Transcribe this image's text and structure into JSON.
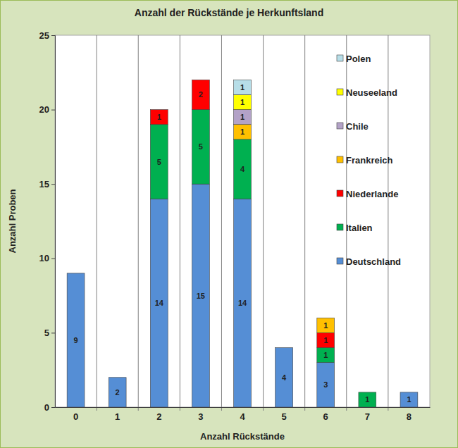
{
  "chart_data": {
    "type": "bar",
    "title": "Anzahl der Rückstände je Herkunftsland",
    "x_label": "Anzahl Rückstände",
    "y_label": "Anzahl Proben",
    "categories": [
      "0",
      "1",
      "2",
      "3",
      "4",
      "5",
      "6",
      "7",
      "8"
    ],
    "series": [
      {
        "name": "Deutschland",
        "color": "#558ed5",
        "values": [
          9,
          2,
          14,
          15,
          14,
          4,
          3,
          0,
          1
        ]
      },
      {
        "name": "Italien",
        "color": "#00b050",
        "values": [
          0,
          0,
          5,
          5,
          4,
          0,
          1,
          1,
          0
        ]
      },
      {
        "name": "Niederlande",
        "color": "#ff0000",
        "values": [
          0,
          0,
          1,
          2,
          0,
          0,
          1,
          0,
          0
        ]
      },
      {
        "name": "Frankreich",
        "color": "#ffc000",
        "values": [
          0,
          0,
          0,
          0,
          1,
          0,
          1,
          0,
          0
        ]
      },
      {
        "name": "Chile",
        "color": "#b3a2c7",
        "values": [
          0,
          0,
          0,
          0,
          1,
          0,
          0,
          0,
          0
        ]
      },
      {
        "name": "Neuseeland",
        "color": "#ffff00",
        "values": [
          0,
          0,
          0,
          0,
          1,
          0,
          0,
          0,
          0
        ]
      },
      {
        "name": "Polen",
        "color": "#b7dee8",
        "values": [
          0,
          0,
          0,
          0,
          1,
          0,
          0,
          0,
          0
        ]
      }
    ],
    "ylim": [
      0,
      25
    ],
    "yticks": [
      0,
      5,
      10,
      15,
      20,
      25
    ],
    "stacked": true,
    "data_labels": true,
    "grid": true,
    "legend": "upper right"
  }
}
